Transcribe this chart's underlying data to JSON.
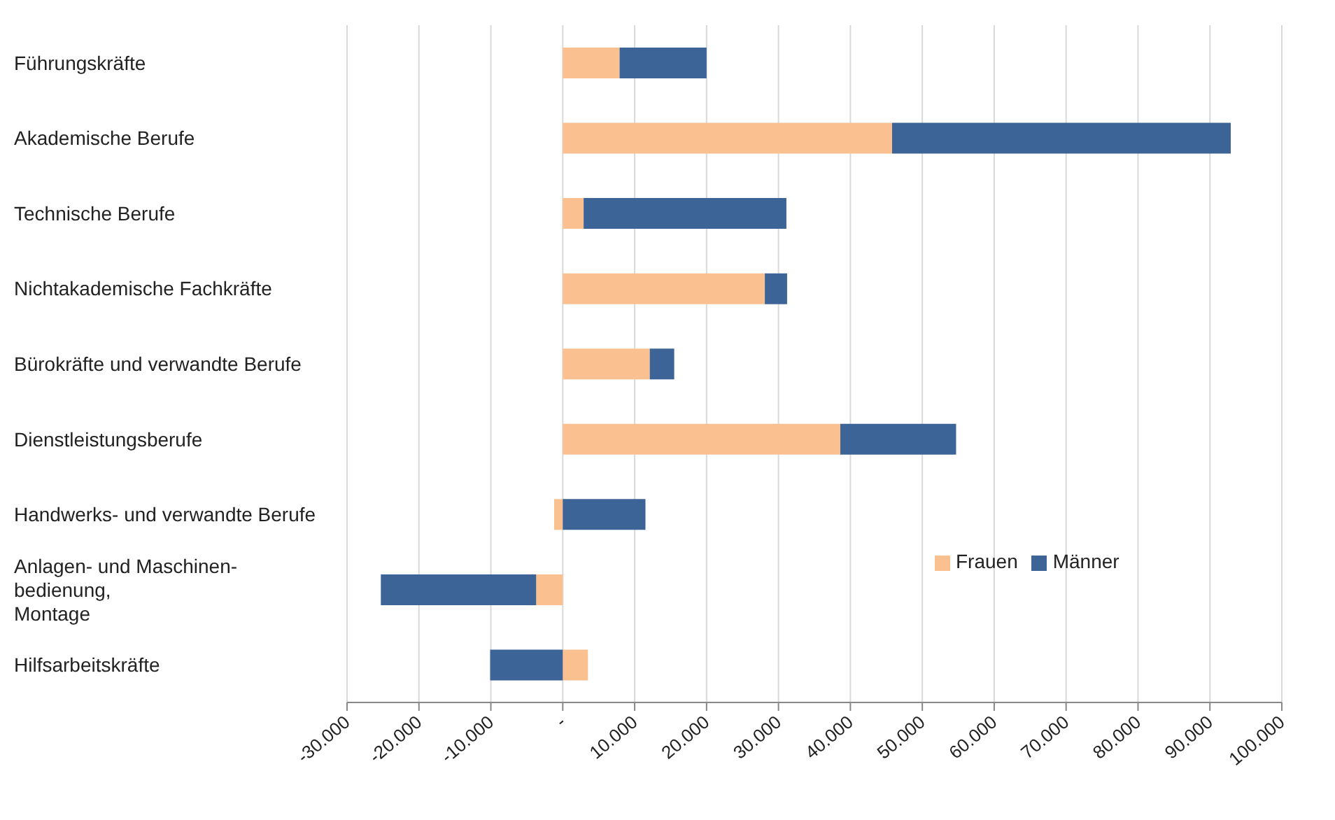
{
  "chart_data": {
    "type": "bar",
    "orientation": "horizontal",
    "stacked": true,
    "categories": [
      "Führungskräfte",
      "Akademische Berufe",
      "Technische Berufe",
      "Nichtakademische Fachkräfte",
      "Bürokräfte und verwandte Berufe",
      "Dienstleistungsberufe",
      "Handwerks- und verwandte Berufe",
      "Anlagen- und Maschinen-\nbedienung,\nMontage",
      "Hilfsarbeitskräfte"
    ],
    "series": [
      {
        "name": "Frauen",
        "color": "#fac090",
        "values": [
          7900,
          45800,
          2900,
          28100,
          12100,
          38600,
          -1200,
          -3700,
          3500
        ]
      },
      {
        "name": "Männer",
        "color": "#3c6496",
        "values": [
          12100,
          47100,
          28200,
          3100,
          3400,
          16100,
          11500,
          -21600,
          -10100
        ]
      }
    ],
    "xlim": [
      -30000,
      100000
    ],
    "xticks": [
      {
        "value": -30000,
        "label": "-30.000"
      },
      {
        "value": -20000,
        "label": "-20.000"
      },
      {
        "value": -10000,
        "label": "-10.000"
      },
      {
        "value": 0,
        "label": "-"
      },
      {
        "value": 10000,
        "label": "10.000"
      },
      {
        "value": 20000,
        "label": "20.000"
      },
      {
        "value": 30000,
        "label": "30.000"
      },
      {
        "value": 40000,
        "label": "40.000"
      },
      {
        "value": 50000,
        "label": "50.000"
      },
      {
        "value": 60000,
        "label": "60.000"
      },
      {
        "value": 70000,
        "label": "70.000"
      },
      {
        "value": 80000,
        "label": "80.000"
      },
      {
        "value": 90000,
        "label": "90.000"
      },
      {
        "value": 100000,
        "label": "100.000"
      }
    ],
    "grid": "x",
    "legend": "right"
  }
}
